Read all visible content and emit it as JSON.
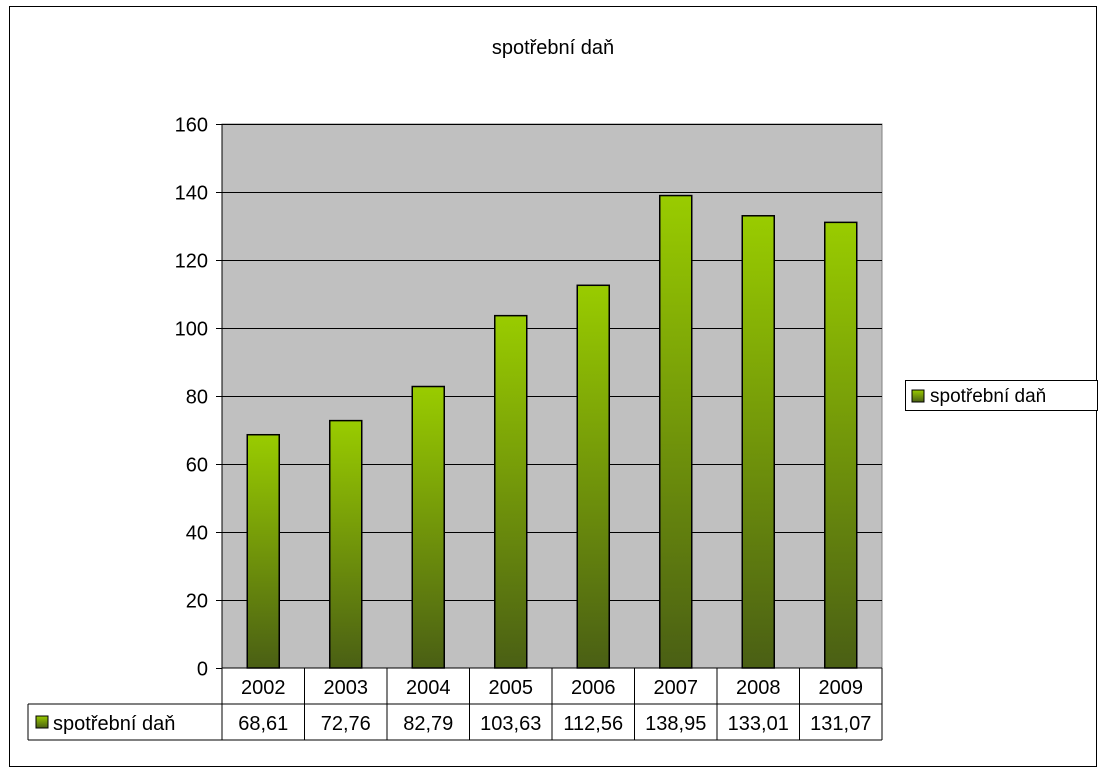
{
  "chart_data": {
    "type": "bar",
    "title": "spotřební daň",
    "categories": [
      "2002",
      "2003",
      "2004",
      "2005",
      "2006",
      "2007",
      "2008",
      "2009"
    ],
    "series": [
      {
        "name": "spotřební daň",
        "values": [
          68.61,
          72.76,
          82.79,
          103.63,
          112.56,
          138.95,
          133.01,
          131.07
        ],
        "labels": [
          "68,61",
          "72,76",
          "82,79",
          "103,63",
          "112,56",
          "138,95",
          "133,01",
          "131,07"
        ]
      }
    ],
    "y_ticks": [
      "0",
      "20",
      "40",
      "60",
      "80",
      "100",
      "120",
      "140",
      "160"
    ],
    "ylim": [
      0,
      160
    ],
    "grid": true,
    "legend": "right",
    "data_table": true,
    "colors": {
      "bar_top": "#99cc00",
      "bar_bottom": "#4a5f14",
      "plot_background": "#c0c0c0",
      "gridline": "#000000"
    }
  }
}
